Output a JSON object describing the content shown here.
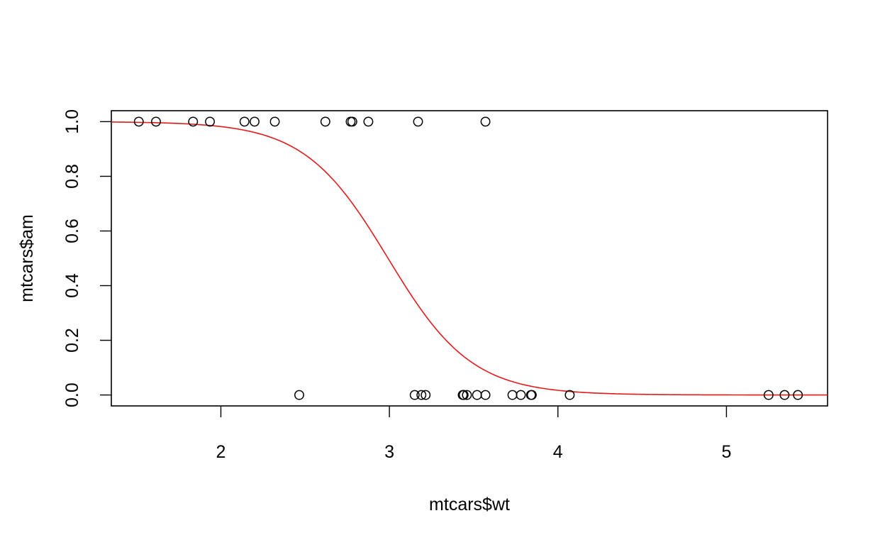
{
  "chart_data": {
    "type": "scatter",
    "title": "",
    "xlabel": "mtcars$wt",
    "ylabel": "mtcars$am",
    "xlim": [
      1.35,
      5.6
    ],
    "ylim": [
      -0.04,
      1.04
    ],
    "x_ticks": [
      2,
      3,
      4,
      5
    ],
    "x_tick_labels": [
      "2",
      "3",
      "4",
      "5"
    ],
    "y_ticks": [
      0.0,
      0.2,
      0.4,
      0.6,
      0.8,
      1.0
    ],
    "y_tick_labels": [
      "0.0",
      "0.2",
      "0.4",
      "0.6",
      "0.8",
      "1.0"
    ],
    "grid": false,
    "points": {
      "marker": "open-circle",
      "color": "#000000",
      "x": [
        2.62,
        2.875,
        2.32,
        3.215,
        3.44,
        3.46,
        3.57,
        3.19,
        3.15,
        3.44,
        3.44,
        4.07,
        3.73,
        3.78,
        5.25,
        5.424,
        5.345,
        2.2,
        1.615,
        1.835,
        2.465,
        3.52,
        3.435,
        3.84,
        3.845,
        1.935,
        2.14,
        1.513,
        3.17,
        2.77,
        3.57,
        2.78
      ],
      "y": [
        1,
        1,
        1,
        0,
        0,
        0,
        0,
        0,
        0,
        0,
        0,
        0,
        0,
        0,
        0,
        0,
        0,
        1,
        1,
        1,
        0,
        0,
        0,
        0,
        0,
        1,
        1,
        1,
        1,
        1,
        1,
        1
      ]
    },
    "fitted_curve": {
      "kind": "logistic",
      "color": "#e41a1c",
      "intercept": 12.04,
      "slope": -4.024
    }
  }
}
